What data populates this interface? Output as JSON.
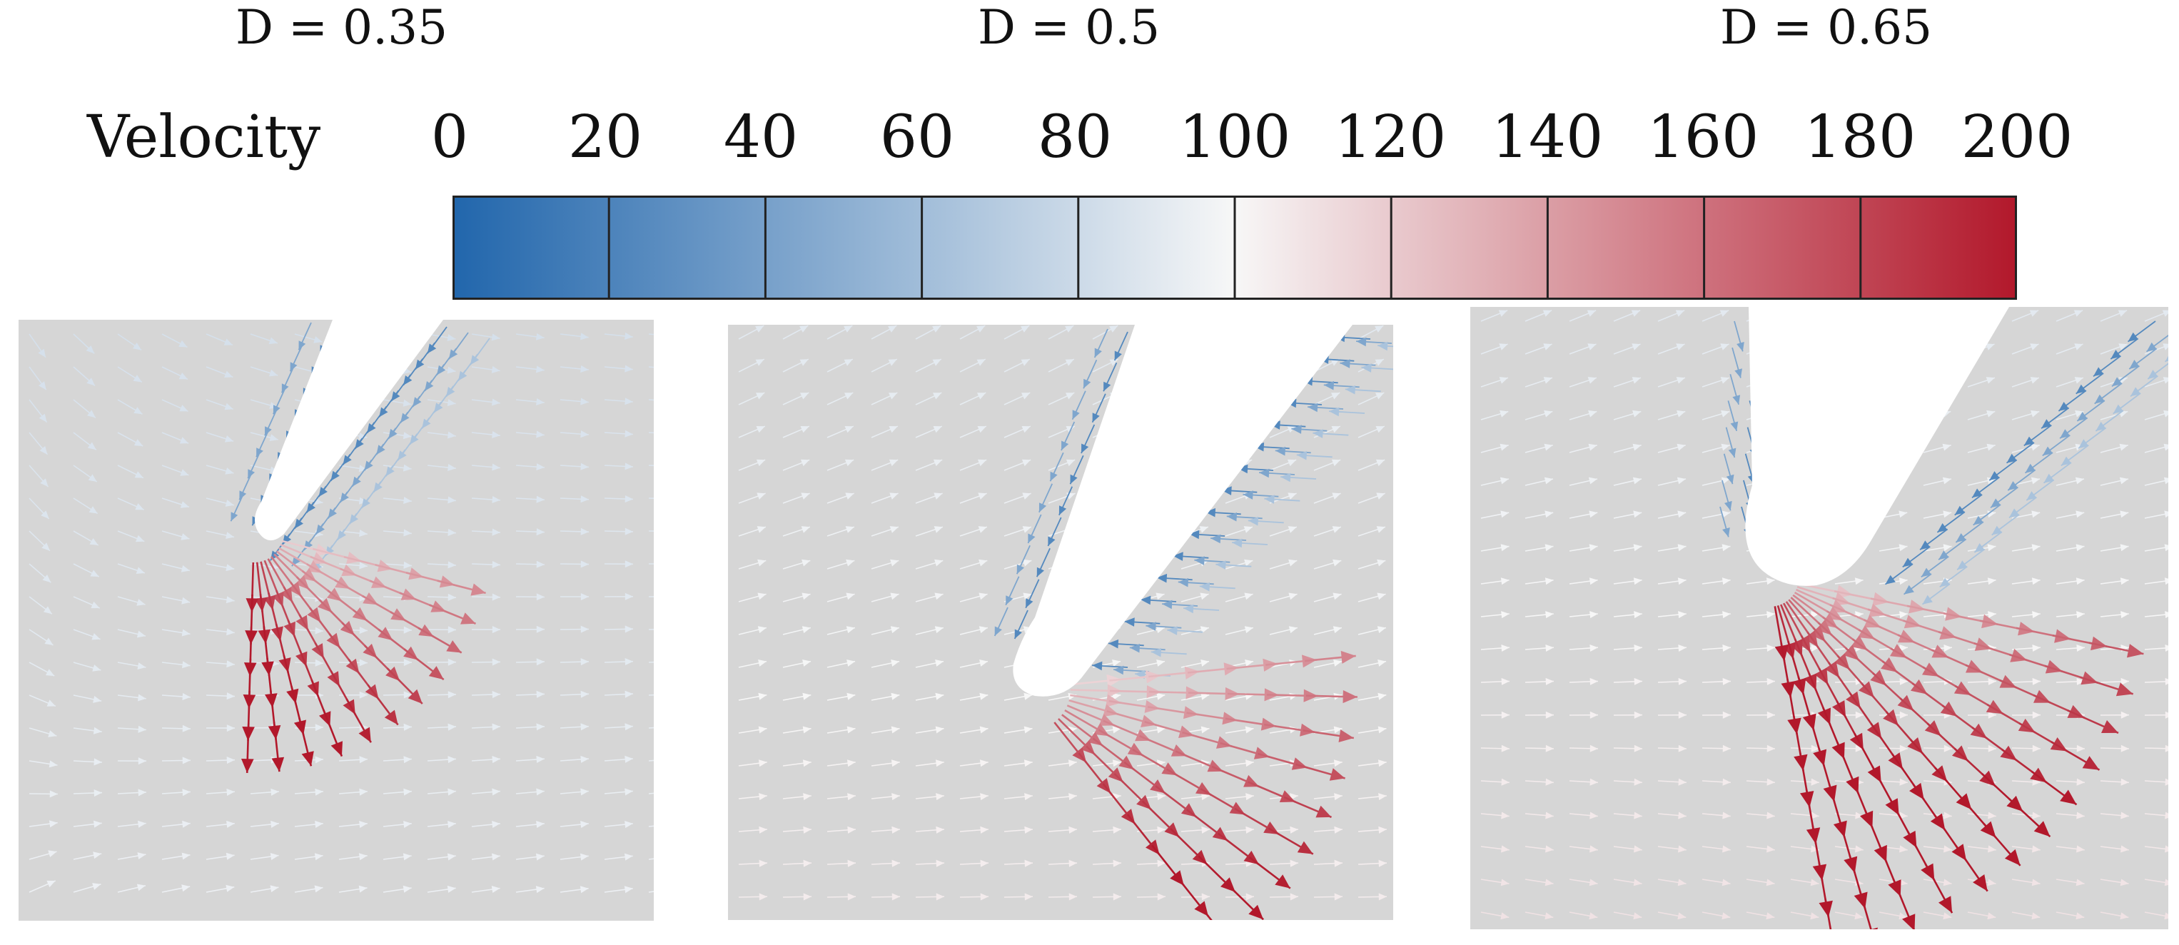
{
  "panels": [
    {
      "id": "a",
      "label": "D = 0.35"
    },
    {
      "id": "b",
      "label": "D = 0.5"
    },
    {
      "id": "c",
      "label": "D = 0.65"
    }
  ],
  "colorbar": {
    "label": "Velocity",
    "ticks": [
      "0",
      "20",
      "40",
      "60",
      "80",
      "100",
      "120",
      "140",
      "160",
      "180",
      "200"
    ],
    "min": 0,
    "max": 200,
    "colors": {
      "low": "#2166ac",
      "mid": "#f7f7f7",
      "high": "#b2182b",
      "background": "#d6d6d6"
    }
  }
}
